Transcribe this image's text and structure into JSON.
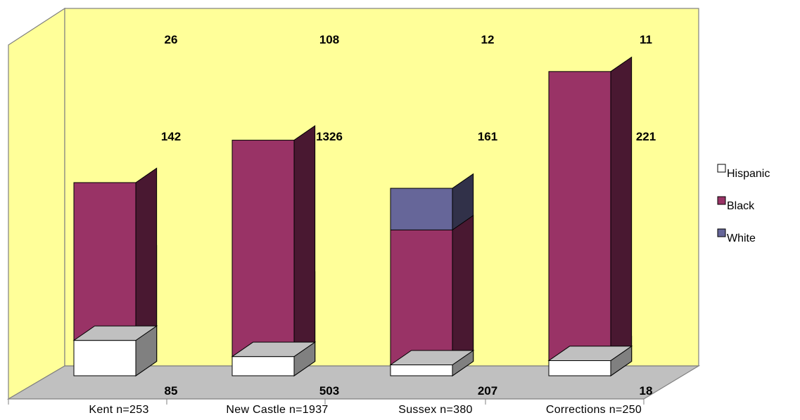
{
  "chart_data": {
    "type": "bar",
    "stacked": true,
    "three_d": true,
    "categories": [
      "Kent n=253",
      "New Castle n=1937",
      "Sussex n=380",
      "Corrections n=250"
    ],
    "series": [
      {
        "name": "White",
        "values": [
          85,
          503,
          207,
          18
        ],
        "labels": [
          "85",
          "503",
          "207",
          "18"
        ],
        "color": "#666699"
      },
      {
        "name": "Black",
        "values": [
          142,
          1326,
          161,
          221
        ],
        "labels": [
          "142",
          "1326",
          "161",
          "221"
        ],
        "color": "#993366"
      },
      {
        "name": "Hispanic",
        "values": [
          26,
          108,
          12,
          11
        ],
        "labels": [
          "26",
          "108",
          "12",
          "11"
        ],
        "color": "#ffffff"
      }
    ],
    "legend_order": [
      "Hispanic",
      "Black",
      "White"
    ],
    "legend_placement": "right",
    "grid": false,
    "wall_color": "#ffff99",
    "floor_color": "#c0c0c0",
    "title": "",
    "xlabel": "",
    "ylabel": ""
  }
}
